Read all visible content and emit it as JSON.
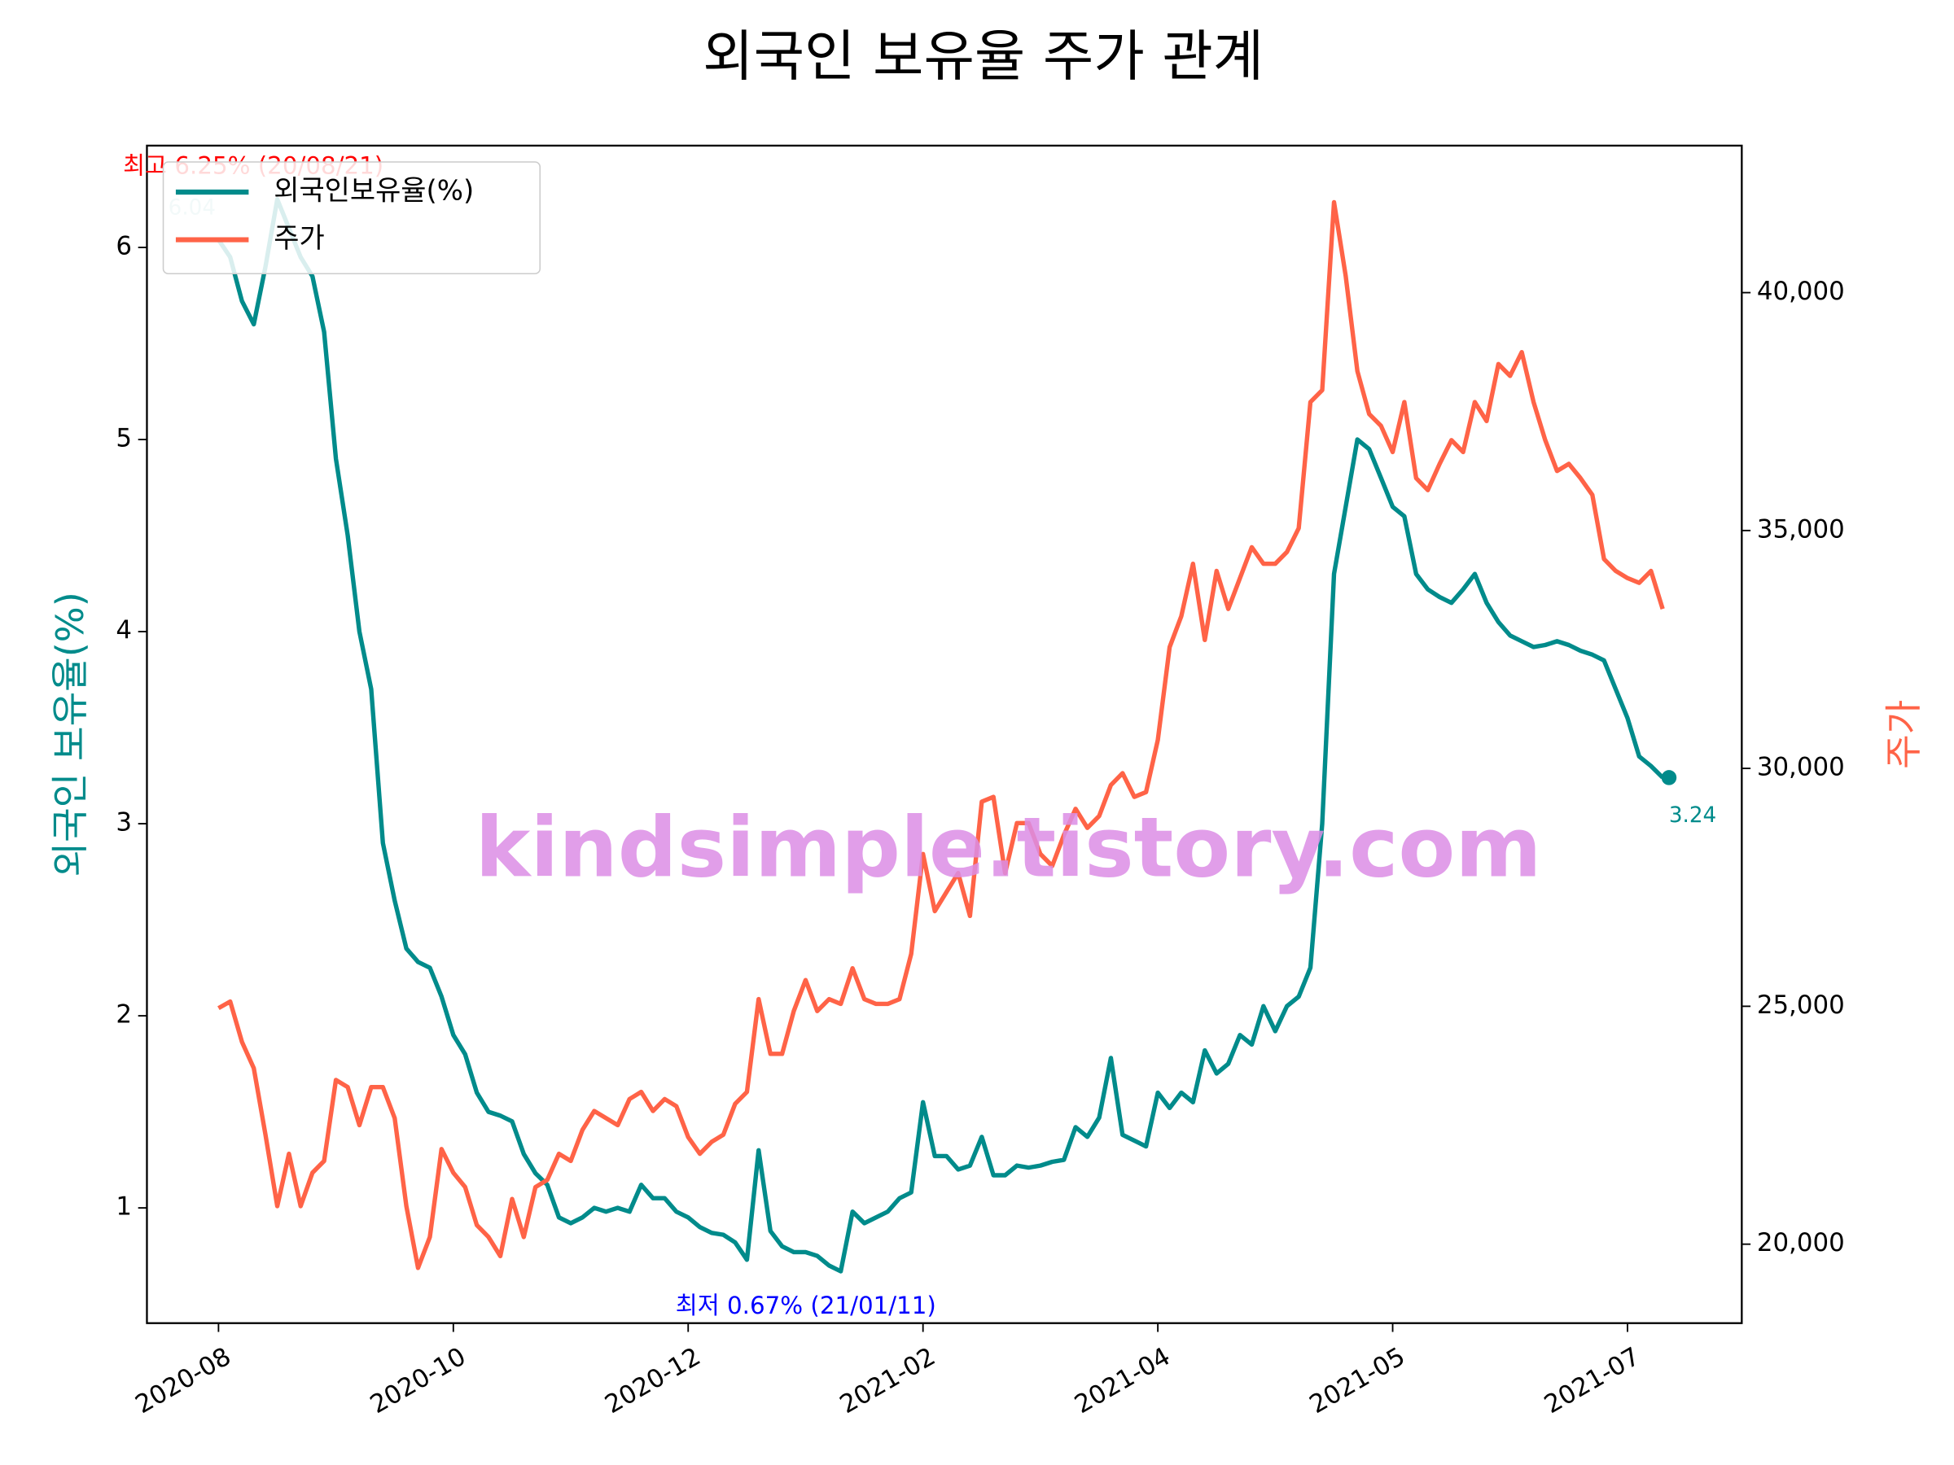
{
  "chart_data": {
    "type": "line",
    "title": "외국인 보유율 주가 관계",
    "ylabel": "외국인 보유율(%)",
    "y2label": "주가",
    "watermark": "kindsimple.tistory.com",
    "annotations": [
      "최고 6.25% (20/08/21)",
      "최저 0.67% (21/01/11)",
      "6.04",
      "3.24"
    ],
    "legend": "upper left",
    "categories": [
      "2020-08",
      null,
      null,
      null,
      null,
      null,
      null,
      null,
      null,
      null,
      null,
      null,
      null,
      null,
      null,
      null,
      null,
      null,
      null,
      null,
      "2020-10",
      null,
      null,
      null,
      null,
      null,
      null,
      null,
      null,
      null,
      null,
      null,
      null,
      null,
      null,
      null,
      null,
      null,
      null,
      null,
      "2020-12",
      null,
      null,
      null,
      null,
      null,
      null,
      null,
      null,
      null,
      null,
      null,
      null,
      null,
      null,
      null,
      null,
      null,
      null,
      null,
      "2021-02",
      null,
      null,
      null,
      null,
      null,
      null,
      null,
      null,
      null,
      null,
      null,
      null,
      null,
      null,
      null,
      null,
      null,
      null,
      null,
      "2021-04",
      null,
      null,
      null,
      null,
      null,
      null,
      null,
      null,
      null,
      null,
      null,
      null,
      null,
      null,
      null,
      null,
      null,
      null,
      null,
      "2021-05",
      null,
      null,
      null,
      null,
      null,
      null,
      null,
      null,
      null,
      null,
      null,
      null,
      null,
      null,
      null,
      null,
      null,
      null,
      null,
      "2021-07",
      null,
      null,
      null
    ],
    "series": [
      {
        "name": "외국인보유율(%)",
        "color": "#008b8b",
        "axis": "y",
        "values": [
          6.04,
          5.95,
          5.72,
          5.6,
          5.9,
          6.25,
          6.1,
          5.95,
          5.85,
          5.56,
          4.9,
          4.5,
          4.0,
          3.7,
          2.9,
          2.6,
          2.35,
          2.28,
          2.25,
          2.1,
          1.9,
          1.8,
          1.6,
          1.5,
          1.48,
          1.45,
          1.28,
          1.18,
          1.12,
          0.95,
          0.92,
          0.95,
          1.0,
          0.98,
          1.0,
          0.98,
          1.12,
          1.05,
          1.05,
          0.98,
          0.95,
          0.9,
          0.87,
          0.86,
          0.82,
          0.73,
          1.3,
          0.88,
          0.8,
          0.77,
          0.77,
          0.75,
          0.7,
          0.67,
          0.98,
          0.92,
          0.95,
          0.98,
          1.05,
          1.08,
          1.55,
          1.27,
          1.27,
          1.2,
          1.22,
          1.37,
          1.17,
          1.17,
          1.22,
          1.21,
          1.22,
          1.24,
          1.25,
          1.42,
          1.37,
          1.47,
          1.78,
          1.38,
          1.35,
          1.32,
          1.6,
          1.52,
          1.6,
          1.55,
          1.82,
          1.7,
          1.75,
          1.9,
          1.85,
          2.05,
          1.92,
          2.05,
          2.1,
          2.25,
          3.0,
          4.3,
          4.65,
          5.0,
          4.95,
          4.8,
          4.65,
          4.6,
          4.3,
          4.22,
          4.18,
          4.15,
          4.22,
          4.3,
          4.15,
          4.05,
          3.98,
          3.95,
          3.92,
          3.93,
          3.95,
          3.93,
          3.9,
          3.88,
          3.85,
          3.7,
          3.55,
          3.35,
          3.3,
          3.24
        ]
      },
      {
        "name": "주가",
        "color": "#ff6347",
        "axis": "y2",
        "values": [
          24960,
          25100,
          24250,
          23700,
          22300,
          20800,
          21900,
          20800,
          21500,
          21750,
          23450,
          23300,
          22500,
          23300,
          23300,
          22650,
          20800,
          19500,
          20150,
          22000,
          21500,
          21200,
          20400,
          20150,
          19750,
          20950,
          20150,
          21200,
          21350,
          21900,
          21750,
          22400,
          22800,
          22650,
          22500,
          23050,
          23200,
          22800,
          23050,
          22900,
          22250,
          21900,
          22150,
          22300,
          22950,
          23200,
          25150,
          24000,
          24000,
          24900,
          25550,
          24900,
          25150,
          25050,
          25800,
          25150,
          25050,
          25050,
          25150,
          26100,
          28200,
          27000,
          27400,
          27800,
          26900,
          29300,
          29400,
          27800,
          28850,
          28850,
          28200,
          27950,
          28600,
          29150,
          28750,
          29000,
          29650,
          29900,
          29400,
          29500,
          30600,
          32550,
          33200,
          34300,
          32700,
          34150,
          33350,
          34000,
          34650,
          34300,
          34300,
          34550,
          35050,
          37700,
          37950,
          41900,
          40350,
          38350,
          37450,
          37200,
          36650,
          37700,
          36100,
          35850,
          36400,
          36900,
          36650,
          37700,
          37300,
          38500,
          38250,
          38750,
          37700,
          36900,
          36250,
          36400,
          36100,
          35750,
          34400,
          34150,
          34000,
          33900,
          34150,
          33350
        ]
      }
    ],
    "ylim": [
      0.4,
      6.53
    ],
    "yticks": [
      1,
      2,
      3,
      4,
      5,
      6
    ],
    "y2lim": [
      18340,
      43090
    ],
    "y2ticks": [
      {
        "value": 20000,
        "label": "20,000"
      },
      {
        "value": 25000,
        "label": "25,000"
      },
      {
        "value": 30000,
        "label": "30,000"
      },
      {
        "value": 35000,
        "label": "35,000"
      },
      {
        "value": 40000,
        "label": "40,000"
      }
    ]
  }
}
